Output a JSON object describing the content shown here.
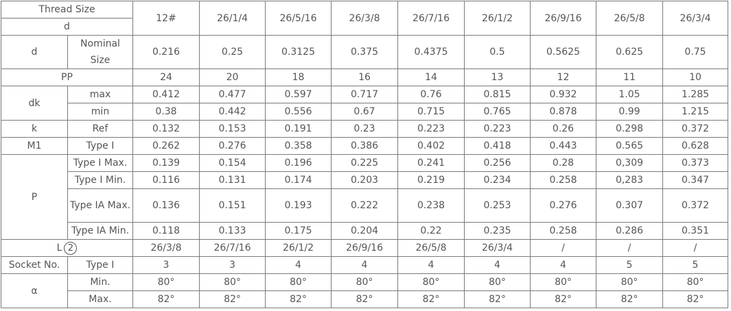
{
  "header": {
    "thread_size": "Thread Size",
    "d": "d",
    "sizes": [
      "12#",
      "26/1/4",
      "26/5/16",
      "26/3/8",
      "26/7/16",
      "26/1/2",
      "26/9/16",
      "26/5/8",
      "26/3/4"
    ]
  },
  "groups": [
    {
      "label": "d",
      "rows": [
        {
          "sub": "Nominal Size",
          "values": [
            "0.216",
            "0.25",
            "0.3125",
            "0.375",
            "0.4375",
            "0.5",
            "0.5625",
            "0.625",
            "0.75"
          ]
        }
      ]
    },
    {
      "label": "PP",
      "rows": [
        {
          "values": [
            "24",
            "20",
            "18",
            "16",
            "14",
            "13",
            "12",
            "11",
            "10"
          ]
        }
      ]
    },
    {
      "label": "dk",
      "rows": [
        {
          "sub": "max",
          "values": [
            "0.412",
            "0.477",
            "0.597",
            "0.717",
            "0.76",
            "0.815",
            "0.932",
            "1.05",
            "1.285"
          ]
        },
        {
          "sub": "min",
          "values": [
            "0.38",
            "0.442",
            "0.556",
            "0.67",
            "0.715",
            "0.765",
            "0.878",
            "0.99",
            "1.215"
          ]
        }
      ]
    },
    {
      "label": "k",
      "rows": [
        {
          "sub": "Ref",
          "values": [
            "0.132",
            "0.153",
            "0.191",
            "0.23",
            "0.223",
            "0.223",
            "0.26",
            "0.298",
            "0.372"
          ]
        }
      ]
    },
    {
      "label": "M1",
      "rows": [
        {
          "sub": "Type I",
          "values": [
            "0.262",
            "0.276",
            "0.358",
            "0.386",
            "0.402",
            "0.418",
            "0.443",
            "0.565",
            "0.628"
          ]
        }
      ]
    },
    {
      "label": "P",
      "rows": [
        {
          "sub": "Type I Max.",
          "values": [
            "0.139",
            "0.154",
            "0.196",
            "0.225",
            "0.241",
            "0.256",
            "0.28",
            "0,309",
            "0.373"
          ]
        },
        {
          "sub": "Type I Min.",
          "values": [
            "0.116",
            "0.131",
            "0.174",
            "0.203",
            "0.219",
            "0.234",
            "0.258",
            "0,283",
            "0.347"
          ]
        },
        {
          "sub": "Type IA Max.",
          "values": [
            "0.136",
            "0.151",
            "0.193",
            "0.222",
            "0.238",
            "0.253",
            "0.276",
            "0.307",
            "0.372"
          ]
        },
        {
          "sub": "Type IA Min.",
          "values": [
            "0.118",
            "0.133",
            "0.175",
            "0.204",
            "0.22",
            "0.235",
            "0.258",
            "0.286",
            "0.351"
          ]
        }
      ]
    },
    {
      "label": "L",
      "note": "2",
      "rows": [
        {
          "values": [
            "26/3/8",
            "26/7/16",
            "26/1/2",
            "26/9/16",
            "26/5/8",
            "26/3/4",
            "/",
            "/",
            "/"
          ]
        }
      ]
    },
    {
      "label": "Socket No.",
      "rows": [
        {
          "sub": "Type I",
          "values": [
            "3",
            "3",
            "4",
            "4",
            "4",
            "4",
            "4",
            "5",
            "5"
          ]
        }
      ]
    },
    {
      "label": "α",
      "rows": [
        {
          "sub": "Min.",
          "values": [
            "80°",
            "80°",
            "80°",
            "80°",
            "80°",
            "80°",
            "80°",
            "80°",
            "80°"
          ]
        },
        {
          "sub": "Max.",
          "values": [
            "82°",
            "82°",
            "82°",
            "82°",
            "82°",
            "82°",
            "82°",
            "82°",
            "82°"
          ]
        }
      ]
    }
  ]
}
